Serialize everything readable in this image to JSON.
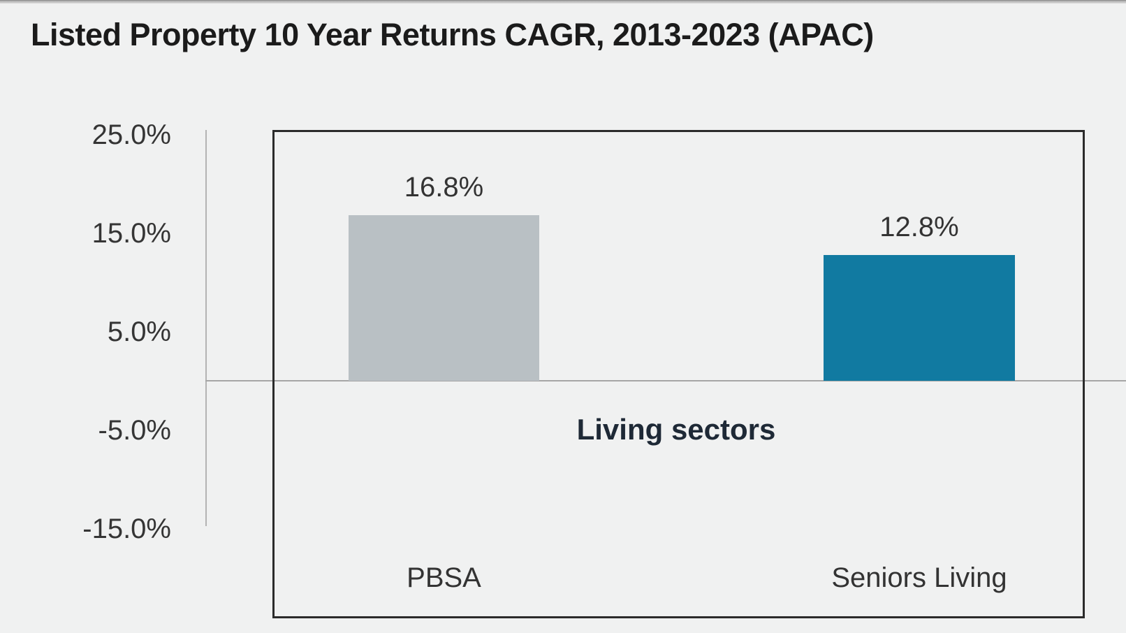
{
  "chart_data": {
    "type": "bar",
    "title": "Listed Property 10 Year Returns CAGR, 2013-2023 (APAC)",
    "categories": [
      "PBSA",
      "Seniors Living"
    ],
    "values": [
      16.8,
      12.8
    ],
    "value_labels": [
      "16.8%",
      "12.8%"
    ],
    "series_colors": [
      "#b9c0c4",
      "#117aa1"
    ],
    "xlabel": "Living sectors",
    "ylabel": "",
    "ylim": [
      -15,
      25
    ],
    "yticks": [
      25,
      15,
      5,
      -5,
      -15
    ],
    "ytick_labels": [
      "25.0%",
      "15.0%",
      "5.0%",
      "-5.0%",
      "-15.0%"
    ],
    "grid": false,
    "legend_position": "none"
  },
  "colors": {
    "background": "#f0f1f1",
    "plot_border": "#2b2b2b",
    "zero_line": "#a6a6a6",
    "axis_line": "#b3b3b3",
    "title_text": "#1b1b1b",
    "xlabel_text": "#1e2936"
  }
}
